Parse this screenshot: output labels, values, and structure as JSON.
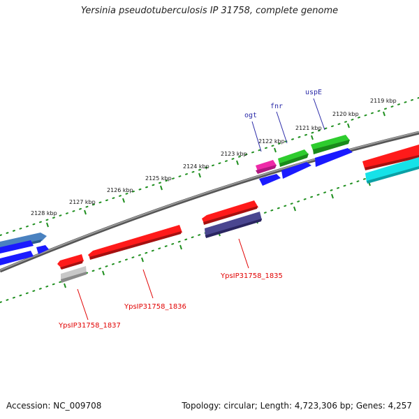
{
  "title": "Yersinia pseudotuberculosis IP 31758, complete genome",
  "accession": "Accession: NC_009708",
  "topology": "Topology: circular; Length: 4,723,306 bp; Genes: 4,257",
  "kbp_labels": [
    "2119 kbp",
    "2120 kbp",
    "2121 kbp",
    "2122 kbp",
    "2123 kbp",
    "2124 kbp",
    "2125 kbp",
    "2126 kbp",
    "2127 kbp",
    "2128 kbp"
  ],
  "gene_labels_top": [
    "ogt",
    "fnr",
    "uspE"
  ],
  "gene_labels_bottom": [
    "YpsIP31758_1835",
    "YpsIP31758_1836",
    "YpsIP31758_1837"
  ],
  "colors": {
    "backbone": "#7a7a7a",
    "ruler": "#1f8f1f",
    "red": "#ff1a1a",
    "blue": "#1a1aff",
    "green": "#2ecc2e",
    "magenta": "#ee2aa8",
    "cyan": "#16e2e8",
    "slate": "#4a4690",
    "gray": "#c8c8c8",
    "steel": "#4a82c0"
  }
}
